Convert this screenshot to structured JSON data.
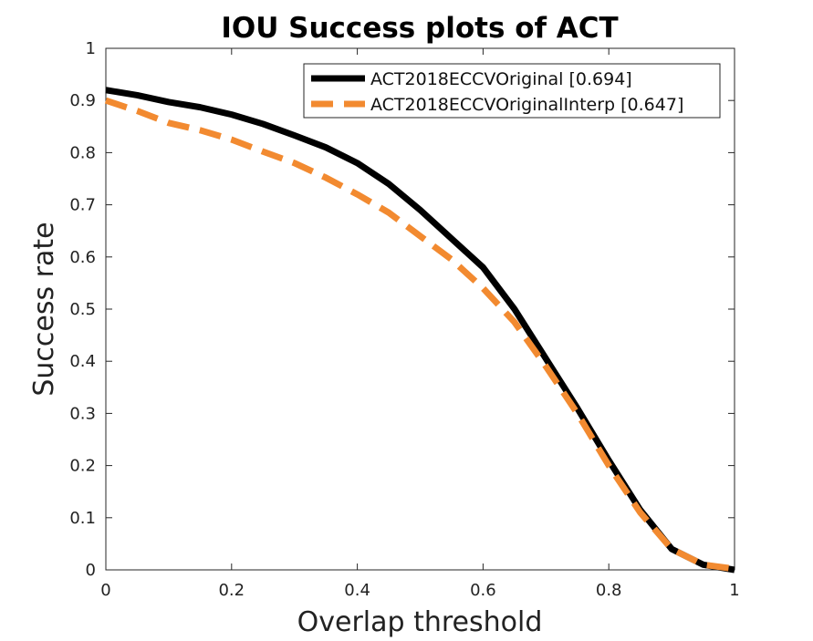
{
  "chart_data": {
    "type": "line",
    "title": "IOU Success plots of ACT",
    "xlabel": "Overlap threshold",
    "ylabel": "Success rate",
    "xlim": [
      0,
      1
    ],
    "ylim": [
      0,
      1
    ],
    "xticks": [
      "0",
      "0.2",
      "0.4",
      "0.6",
      "0.8",
      "1"
    ],
    "yticks": [
      "0",
      "0.1",
      "0.2",
      "0.3",
      "0.4",
      "0.5",
      "0.6",
      "0.7",
      "0.8",
      "0.9",
      "1"
    ],
    "grid": false,
    "legend_position": "top-right",
    "x": [
      0,
      0.05,
      0.1,
      0.15,
      0.2,
      0.25,
      0.3,
      0.35,
      0.4,
      0.45,
      0.5,
      0.55,
      0.6,
      0.65,
      0.7,
      0.75,
      0.8,
      0.85,
      0.9,
      0.95,
      1.0
    ],
    "series": [
      {
        "name": "ACT2018ECCVOriginal [0.694]",
        "color": "#000000",
        "style": "solid",
        "values": [
          0.92,
          0.91,
          0.897,
          0.887,
          0.873,
          0.855,
          0.833,
          0.81,
          0.78,
          0.74,
          0.69,
          0.635,
          0.58,
          0.5,
          0.405,
          0.31,
          0.21,
          0.115,
          0.04,
          0.01,
          0.0
        ]
      },
      {
        "name": "ACT2018ECCVOriginalInterp [0.647]",
        "color": "#f28a30",
        "style": "dashed",
        "values": [
          0.9,
          0.88,
          0.857,
          0.843,
          0.825,
          0.802,
          0.78,
          0.752,
          0.72,
          0.685,
          0.64,
          0.595,
          0.54,
          0.475,
          0.39,
          0.3,
          0.2,
          0.11,
          0.04,
          0.01,
          0.002
        ]
      }
    ]
  }
}
